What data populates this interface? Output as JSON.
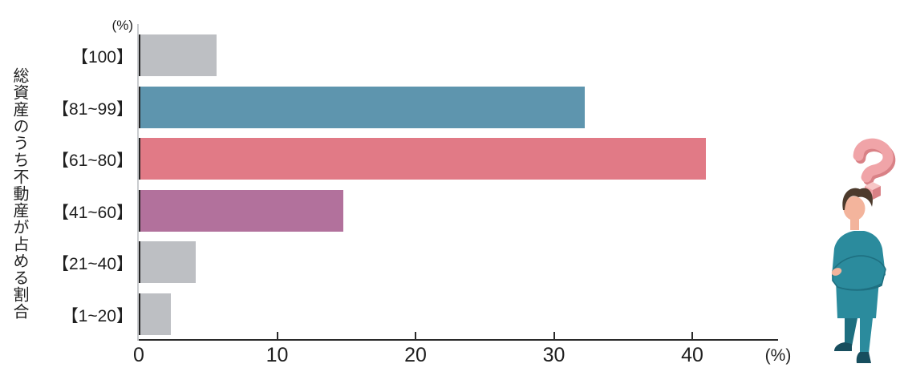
{
  "chart_data": {
    "type": "bar",
    "orientation": "horizontal",
    "category_axis_label": "総資産のうち不動産が占める割合",
    "category_axis_unit": "(%)",
    "value_axis_unit": "(%)",
    "categories": [
      "【100】",
      "【81~99】",
      "【61~80】",
      "【41~60】",
      "【21~40】",
      "【1~20】"
    ],
    "values": [
      5.6,
      32.2,
      41.0,
      14.8,
      4.1,
      2.3
    ],
    "bar_colors": [
      "#bdbfc3",
      "#5e95ae",
      "#e17a86",
      "#b2719c",
      "#bdbfc3",
      "#bdbfc3"
    ],
    "xticks": [
      "0",
      "10",
      "20",
      "30",
      "40"
    ],
    "xlim": [
      0,
      46.2
    ],
    "grid": false,
    "legend": false
  },
  "illustration": {
    "name": "thinking-businessman-with-question-mark",
    "colors": {
      "suit": "#2b8b9d",
      "suit_shadow": "#1e6f80",
      "skin": "#f3b49c",
      "hair": "#4c3a2c",
      "tie": "#b25663",
      "shirt": "#ffffff",
      "shoes": "#174e5e",
      "question_mark": "#f0a4a8",
      "question_mark_shadow": "#d98186",
      "question_mark_light": "#f7c6c6"
    }
  }
}
